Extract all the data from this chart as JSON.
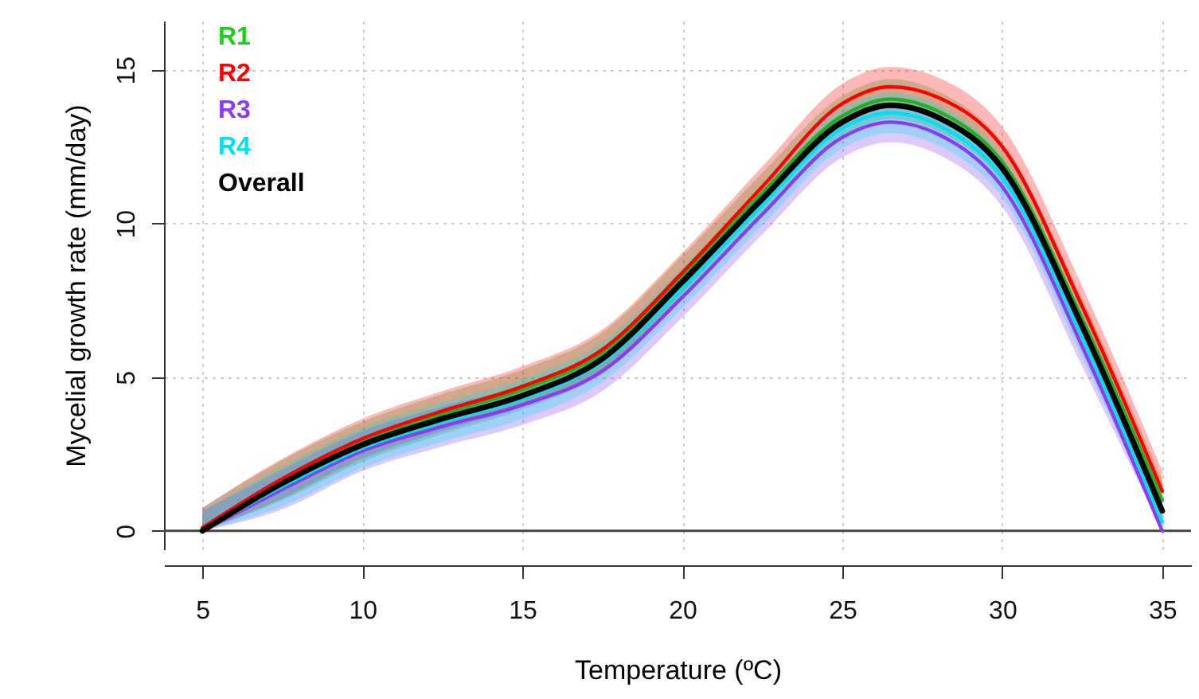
{
  "chart_data": {
    "type": "line",
    "xlabel": "Temperature (ºC)",
    "ylabel": "Mycelial growth rate (mm/day)",
    "x": [
      5,
      7.5,
      10,
      12.5,
      15,
      17.5,
      20,
      22.5,
      25,
      26.5,
      28,
      30,
      32.5,
      35
    ],
    "xlim": [
      3.8,
      35.9
    ],
    "xticks": [
      5,
      10,
      15,
      20,
      25,
      30,
      35
    ],
    "ylim": [
      -0.6,
      16.6
    ],
    "yticks": [
      0,
      5,
      10,
      15
    ],
    "grid": true,
    "line_style": "solid",
    "marker": "none",
    "ref_lines": [
      {
        "axis": "y",
        "value": 0,
        "color": "#444444"
      }
    ],
    "series": [
      {
        "name": "R1",
        "color": "#22b022",
        "values": [
          0.1,
          1.65,
          2.9,
          3.8,
          4.6,
          5.8,
          8.3,
          11.0,
          13.5,
          14.05,
          13.65,
          12.0,
          6.9,
          1.0
        ],
        "lower": [
          0,
          1.0,
          2.25,
          3.15,
          3.95,
          5.15,
          7.65,
          10.35,
          12.85,
          13.4,
          13.0,
          11.35,
          6.25,
          0.35
        ],
        "upper": [
          0.75,
          2.3,
          3.55,
          4.45,
          5.25,
          6.45,
          8.95,
          11.65,
          14.15,
          14.7,
          14.3,
          12.65,
          7.55,
          1.65
        ]
      },
      {
        "name": "R2",
        "color": "#ff0000",
        "values": [
          0.1,
          1.7,
          3.0,
          3.9,
          4.7,
          5.9,
          8.4,
          11.2,
          13.9,
          14.45,
          14.1,
          12.5,
          7.3,
          1.3
        ],
        "lower": [
          0,
          1.05,
          2.35,
          3.25,
          4.05,
          5.25,
          7.75,
          10.55,
          13.25,
          13.8,
          13.45,
          11.85,
          6.65,
          0.65
        ],
        "upper": [
          0.75,
          2.35,
          3.65,
          4.55,
          5.35,
          6.55,
          9.05,
          11.85,
          14.55,
          15.1,
          14.75,
          13.15,
          7.95,
          1.95
        ]
      },
      {
        "name": "R3",
        "color": "#8a3cf0",
        "values": [
          0,
          1.35,
          2.6,
          3.4,
          4.1,
          5.2,
          7.6,
          10.3,
          12.8,
          13.3,
          12.9,
          11.2,
          6.0,
          0
        ],
        "lower": [
          0,
          0.7,
          1.95,
          2.75,
          3.45,
          4.55,
          6.95,
          9.65,
          12.15,
          12.65,
          12.25,
          10.55,
          5.35,
          0
        ],
        "upper": [
          0.65,
          2.0,
          3.25,
          4.05,
          4.75,
          5.85,
          8.25,
          10.95,
          13.45,
          13.95,
          13.55,
          11.85,
          6.65,
          0.65
        ]
      },
      {
        "name": "R4",
        "color": "#00e0f0",
        "values": [
          0,
          1.45,
          2.7,
          3.55,
          4.3,
          5.5,
          7.9,
          10.6,
          13.1,
          13.6,
          13.2,
          11.5,
          6.3,
          0.3
        ],
        "lower": [
          0,
          0.8,
          2.05,
          2.9,
          3.65,
          4.85,
          7.25,
          9.95,
          12.45,
          12.95,
          12.55,
          10.85,
          5.65,
          0
        ],
        "upper": [
          0.65,
          2.1,
          3.35,
          4.2,
          4.95,
          6.15,
          8.55,
          11.25,
          13.75,
          14.25,
          13.85,
          12.15,
          6.95,
          0.95
        ]
      },
      {
        "name": "Overall",
        "color": "#000000",
        "values": [
          0,
          1.55,
          2.8,
          3.65,
          4.4,
          5.6,
          8.1,
          10.8,
          13.3,
          13.85,
          13.45,
          11.8,
          6.65,
          0.65
        ]
      }
    ]
  }
}
